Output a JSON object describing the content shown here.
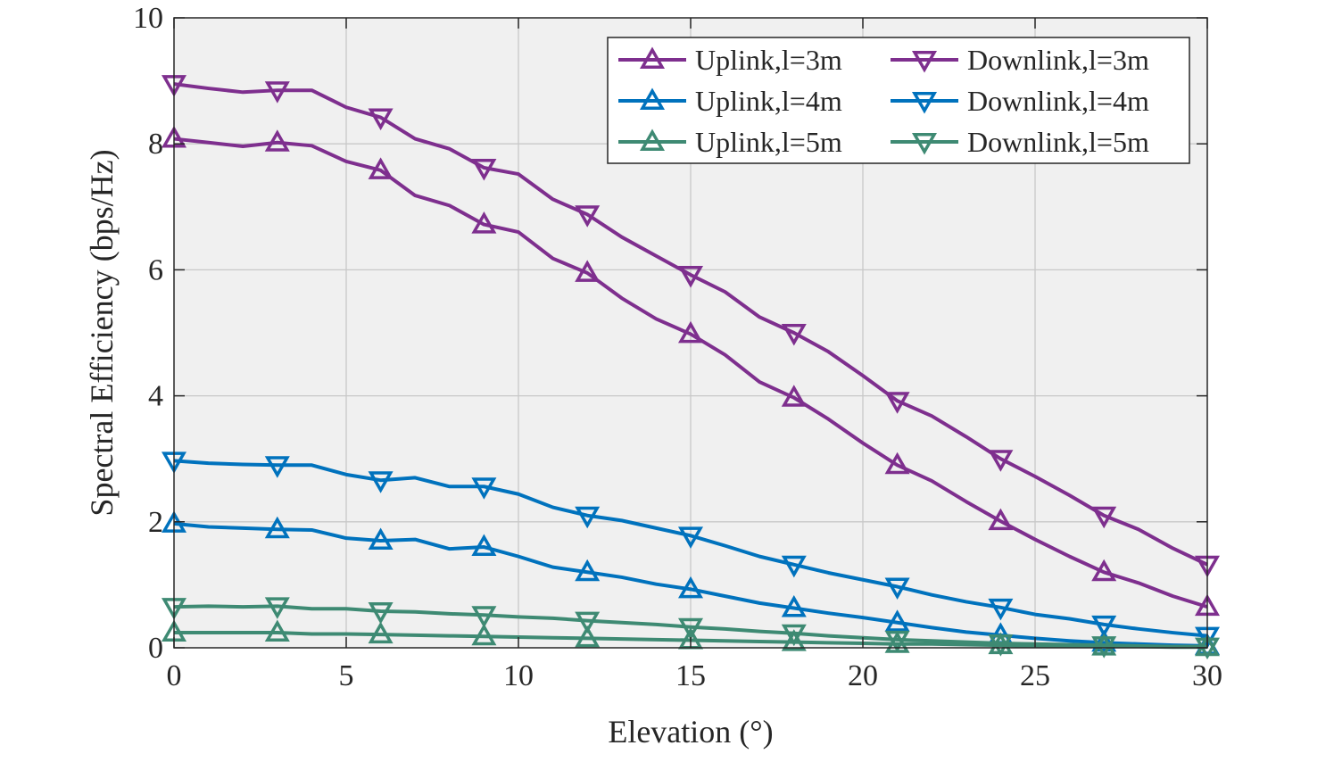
{
  "chart_data": {
    "type": "line",
    "title": "",
    "xlabel": "Elevation (°)",
    "ylabel": "Spectral Efficiency (bps/Hz)",
    "xlim": [
      0,
      30
    ],
    "ylim": [
      0,
      10
    ],
    "x_ticks": [
      "0",
      "5",
      "10",
      "15",
      "20",
      "25",
      "30"
    ],
    "y_ticks": [
      "0",
      "2",
      "4",
      "6",
      "8",
      "10"
    ],
    "grid": true,
    "legend_position": "top-right",
    "x": [
      0,
      1,
      2,
      3,
      4,
      5,
      6,
      7,
      8,
      9,
      10,
      11,
      12,
      13,
      14,
      15,
      16,
      17,
      18,
      19,
      20,
      21,
      22,
      23,
      24,
      25,
      26,
      27,
      28,
      29,
      30
    ],
    "marker_every": 3,
    "series": [
      {
        "name": "Uplink,l=3m",
        "color": "#7e2f8e",
        "marker": "triangle-up",
        "values": [
          8.08,
          8.02,
          7.96,
          8.02,
          7.97,
          7.72,
          7.58,
          7.18,
          7.02,
          6.72,
          6.6,
          6.18,
          5.95,
          5.55,
          5.22,
          4.98,
          4.65,
          4.22,
          3.97,
          3.63,
          3.25,
          2.9,
          2.65,
          2.32,
          2.01,
          1.72,
          1.45,
          1.2,
          1.03,
          0.82,
          0.65
        ]
      },
      {
        "name": "Downlink,l=3m",
        "color": "#7e2f8e",
        "marker": "triangle-down",
        "values": [
          8.95,
          8.88,
          8.82,
          8.85,
          8.85,
          8.58,
          8.42,
          8.08,
          7.92,
          7.62,
          7.52,
          7.12,
          6.88,
          6.52,
          6.22,
          5.92,
          5.65,
          5.25,
          5.0,
          4.7,
          4.32,
          3.92,
          3.68,
          3.35,
          3.0,
          2.72,
          2.42,
          2.1,
          1.88,
          1.58,
          1.32
        ]
      },
      {
        "name": "Uplink,l=4m",
        "color": "#0072bd",
        "marker": "triangle-up",
        "values": [
          1.97,
          1.92,
          1.9,
          1.88,
          1.87,
          1.74,
          1.7,
          1.72,
          1.57,
          1.6,
          1.45,
          1.28,
          1.2,
          1.12,
          1.01,
          0.93,
          0.82,
          0.71,
          0.63,
          0.55,
          0.48,
          0.4,
          0.32,
          0.25,
          0.2,
          0.15,
          0.11,
          0.08,
          0.06,
          0.04,
          0.03
        ]
      },
      {
        "name": "Downlink,l=4m",
        "color": "#0072bd",
        "marker": "triangle-down",
        "values": [
          2.97,
          2.93,
          2.91,
          2.9,
          2.9,
          2.75,
          2.66,
          2.7,
          2.56,
          2.56,
          2.44,
          2.23,
          2.1,
          2.02,
          1.9,
          1.78,
          1.62,
          1.45,
          1.32,
          1.19,
          1.08,
          0.97,
          0.84,
          0.73,
          0.64,
          0.53,
          0.46,
          0.37,
          0.3,
          0.24,
          0.19
        ]
      },
      {
        "name": "Uplink,l=5m",
        "color": "#3e8a73",
        "marker": "triangle-up",
        "values": [
          0.24,
          0.24,
          0.24,
          0.24,
          0.22,
          0.22,
          0.21,
          0.2,
          0.19,
          0.18,
          0.17,
          0.16,
          0.15,
          0.14,
          0.13,
          0.12,
          0.11,
          0.1,
          0.09,
          0.08,
          0.07,
          0.06,
          0.06,
          0.05,
          0.04,
          0.03,
          0.03,
          0.02,
          0.02,
          0.01,
          0.01
        ]
      },
      {
        "name": "Downlink,l=5m",
        "color": "#3e8a73",
        "marker": "triangle-down",
        "values": [
          0.65,
          0.66,
          0.65,
          0.66,
          0.62,
          0.62,
          0.58,
          0.57,
          0.54,
          0.52,
          0.49,
          0.47,
          0.43,
          0.4,
          0.37,
          0.33,
          0.3,
          0.26,
          0.23,
          0.19,
          0.16,
          0.13,
          0.11,
          0.09,
          0.07,
          0.06,
          0.05,
          0.04,
          0.03,
          0.02,
          0.02
        ]
      }
    ]
  }
}
